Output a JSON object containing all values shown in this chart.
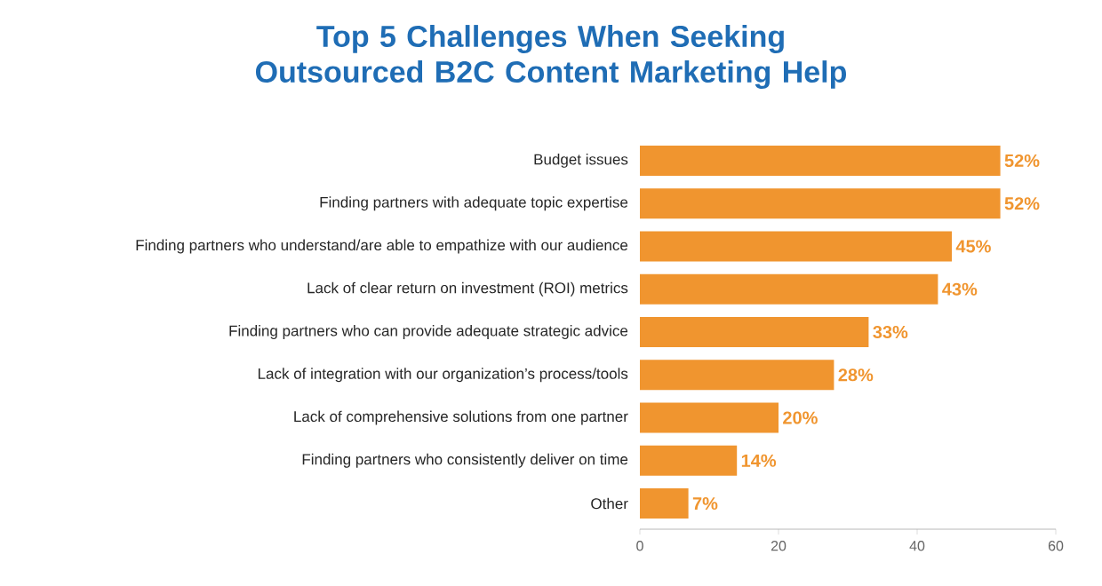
{
  "chart_data": {
    "type": "bar",
    "orientation": "horizontal",
    "title": "Top 5 Challenges When Seeking Outsourced B2C Content Marketing Help",
    "categories": [
      "Budget issues",
      "Finding partners with adequate topic expertise",
      "Finding partners who understand/are able to empathize with our audience",
      "Lack of clear return on investment (ROI) metrics",
      "Finding partners who can provide adequate strategic advice",
      "Lack of integration with our organization’s process/tools",
      "Lack of comprehensive solutions from one partner",
      "Finding partners who consistently deliver on time",
      "Other"
    ],
    "values": [
      52,
      52,
      45,
      43,
      33,
      28,
      20,
      14,
      7
    ],
    "value_labels": [
      "52%",
      "52%",
      "45%",
      "43%",
      "33%",
      "28%",
      "20%",
      "14%",
      "7%"
    ],
    "color": "#f0952f",
    "xlim": [
      0,
      60
    ],
    "xticks": [
      0,
      20,
      40,
      60
    ],
    "grid": false
  }
}
